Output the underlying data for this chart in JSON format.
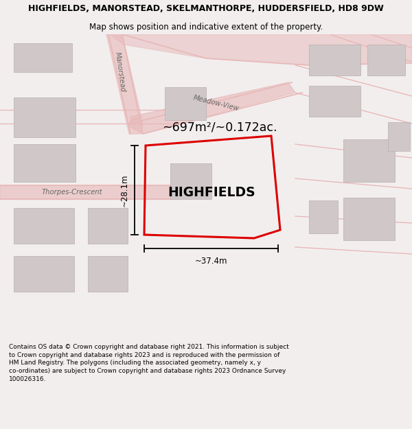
{
  "title": "HIGHFIELDS, MANORSTEAD, SKELMANTHORPE, HUDDERSFIELD, HD8 9DW",
  "subtitle": "Map shows position and indicative extent of the property.",
  "footer": "Contains OS data © Crown copyright and database right 2021. This information is subject to Crown copyright and database rights 2023 and is reproduced with the permission of HM Land Registry. The polygons (including the associated geometry, namely x, y co-ordinates) are subject to Crown copyright and database rights 2023 Ordnance Survey 100026316.",
  "bg_color": "#f2eeee",
  "map_bg": "#ffffff",
  "road_color": "#e8b8b8",
  "building_fill": "#d0c8c8",
  "building_edge": "#b8b0b0",
  "highlight_color": "#dd0000",
  "label_color": "#666666",
  "area_text": "~697m²/~0.172ac.",
  "property_label": "HIGHFIELDS",
  "width_label": "~37.4m",
  "height_label": "~28.1m",
  "title_fontsize": 9.0,
  "subtitle_fontsize": 8.5,
  "footer_fontsize": 6.5,
  "fig_width": 6.0,
  "fig_height": 6.25,
  "dpi": 100
}
